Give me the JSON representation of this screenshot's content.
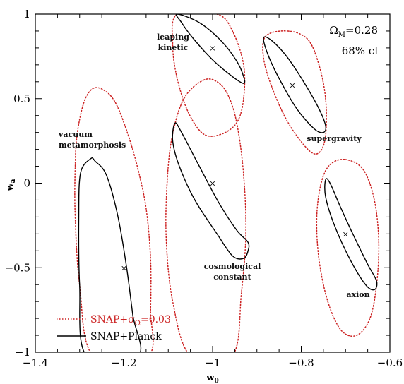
{
  "chart_data": {
    "type": "scatter",
    "xlabel": "w",
    "xlabel_sub": "0",
    "ylabel": "w",
    "ylabel_sub": "a",
    "xlim": [
      -1.4,
      -0.6
    ],
    "ylim": [
      -1,
      1
    ],
    "x_ticks": [
      -1.4,
      -1.2,
      -1.0,
      -0.8,
      -0.6
    ],
    "x_tick_labels": [
      "−1.4",
      "−1.2",
      "−1",
      "−0.8",
      "−0.6"
    ],
    "y_ticks": [
      -1,
      -0.5,
      0,
      0.5,
      1
    ],
    "y_tick_labels": [
      "−1",
      "−0.5",
      "0",
      "0.5",
      "1"
    ],
    "grid": false,
    "annotation_lines": [
      "Ω_M=0.28",
      "68% cl"
    ],
    "annotation_main": "Ω",
    "annotation_sub": "M",
    "annotation_rest": "=0.28",
    "annotation_second": "68% cl",
    "colors": {
      "prior": "#cc2222",
      "planck": "#000000"
    },
    "legend": [
      {
        "label": "SNAP+σ_Ω=0.03",
        "main": "SNAP+σ",
        "sub": "Ω",
        "rest": "=0.03",
        "style": "dotted",
        "color": "#cc2222"
      },
      {
        "label": "SNAP+Planck",
        "main": "SNAP+Planck",
        "sub": "",
        "rest": "",
        "style": "solid",
        "color": "#000000"
      }
    ],
    "models": [
      {
        "name": "vacuum metamorphosis",
        "lines": [
          "vacuum",
          "metamorphosis"
        ],
        "x": -1.2,
        "y": -0.5
      },
      {
        "name": "leaping kinetic",
        "lines": [
          "leaping",
          "kinetic"
        ],
        "x": -1.0,
        "y": 0.8
      },
      {
        "name": "cosmological constant",
        "lines": [
          "cosmological",
          "constant"
        ],
        "x": -1.0,
        "y": 0.0
      },
      {
        "name": "supergravity",
        "lines": [
          "supergravity"
        ],
        "x": -0.82,
        "y": 0.58
      },
      {
        "name": "axion",
        "lines": [
          "axion"
        ],
        "x": -0.7,
        "y": -0.3
      }
    ],
    "series": [
      {
        "name": "SNAP+σ_Ω=0.03",
        "style": "dotted",
        "contours": [
          {
            "model": "vacuum metamorphosis",
            "points": [
              [
                -1.27,
                0.56
              ],
              [
                -1.245,
                0.55
              ],
              [
                -1.22,
                0.48
              ],
              [
                -1.195,
                0.32
              ],
              [
                -1.17,
                0.1
              ],
              [
                -1.15,
                -0.15
              ],
              [
                -1.14,
                -0.45
              ],
              [
                -1.14,
                -0.75
              ],
              [
                -1.145,
                -1.02
              ],
              [
                -1.27,
                -1.02
              ],
              [
                -1.3,
                -0.6
              ],
              [
                -1.31,
                -0.2
              ],
              [
                -1.31,
                0.1
              ],
              [
                -1.305,
                0.3
              ],
              [
                -1.29,
                0.48
              ]
            ]
          },
          {
            "model": "leaping kinetic",
            "points": [
              [
                -1.08,
                1.0
              ],
              [
                -0.99,
                1.0
              ],
              [
                -0.955,
                0.9
              ],
              [
                -0.93,
                0.7
              ],
              [
                -0.93,
                0.5
              ],
              [
                -0.945,
                0.36
              ],
              [
                -0.98,
                0.29
              ],
              [
                -1.02,
                0.29
              ],
              [
                -1.055,
                0.42
              ],
              [
                -1.08,
                0.62
              ],
              [
                -1.09,
                0.82
              ]
            ]
          },
          {
            "model": "cosmological constant",
            "points": [
              [
                -1.02,
                0.61
              ],
              [
                -0.99,
                0.6
              ],
              [
                -0.965,
                0.52
              ],
              [
                -0.945,
                0.35
              ],
              [
                -0.93,
                0.05
              ],
              [
                -0.925,
                -0.3
              ],
              [
                -0.935,
                -0.65
              ],
              [
                -0.955,
                -1.02
              ],
              [
                -1.05,
                -1.02
              ],
              [
                -1.09,
                -0.7
              ],
              [
                -1.105,
                -0.3
              ],
              [
                -1.1,
                0.1
              ],
              [
                -1.085,
                0.35
              ],
              [
                -1.06,
                0.52
              ]
            ]
          },
          {
            "model": "supergravity",
            "points": [
              [
                -0.83,
                0.9
              ],
              [
                -0.785,
                0.85
              ],
              [
                -0.76,
                0.7
              ],
              [
                -0.745,
                0.5
              ],
              [
                -0.745,
                0.28
              ],
              [
                -0.76,
                0.18
              ],
              [
                -0.785,
                0.2
              ],
              [
                -0.83,
                0.36
              ],
              [
                -0.865,
                0.56
              ],
              [
                -0.885,
                0.74
              ],
              [
                -0.88,
                0.87
              ]
            ]
          },
          {
            "model": "axion",
            "points": [
              [
                -0.7,
                0.14
              ],
              [
                -0.66,
                0.08
              ],
              [
                -0.635,
                -0.1
              ],
              [
                -0.625,
                -0.35
              ],
              [
                -0.63,
                -0.6
              ],
              [
                -0.645,
                -0.8
              ],
              [
                -0.675,
                -0.9
              ],
              [
                -0.71,
                -0.87
              ],
              [
                -0.74,
                -0.7
              ],
              [
                -0.76,
                -0.45
              ],
              [
                -0.765,
                -0.2
              ],
              [
                -0.755,
                0.0
              ],
              [
                -0.735,
                0.11
              ]
            ]
          }
        ]
      },
      {
        "name": "SNAP+Planck",
        "style": "solid",
        "contours": [
          {
            "model": "vacuum metamorphosis",
            "points": [
              [
                -1.275,
                0.145
              ],
              [
                -1.265,
                0.13
              ],
              [
                -1.24,
                0.05
              ],
              [
                -1.215,
                -0.18
              ],
              [
                -1.195,
                -0.48
              ],
              [
                -1.18,
                -0.78
              ],
              [
                -1.168,
                -1.02
              ],
              [
                -1.285,
                -1.02
              ],
              [
                -1.3,
                -0.6
              ],
              [
                -1.302,
                -0.2
              ],
              [
                -1.298,
                0.06
              ]
            ]
          },
          {
            "model": "leaping kinetic",
            "points": [
              [
                -1.08,
                1.0
              ],
              [
                -1.03,
                0.95
              ],
              [
                -0.98,
                0.84
              ],
              [
                -0.945,
                0.72
              ],
              [
                -0.93,
                0.63
              ],
              [
                -0.93,
                0.59
              ],
              [
                -0.955,
                0.63
              ],
              [
                -1.0,
                0.73
              ],
              [
                -1.045,
                0.86
              ],
              [
                -1.07,
                0.95
              ]
            ]
          },
          {
            "model": "cosmological constant",
            "points": [
              [
                -1.085,
                0.355
              ],
              [
                -1.07,
                0.3
              ],
              [
                -1.03,
                0.1
              ],
              [
                -0.985,
                -0.12
              ],
              [
                -0.945,
                -0.28
              ],
              [
                -0.92,
                -0.35
              ],
              [
                -0.92,
                -0.4
              ],
              [
                -0.93,
                -0.445
              ],
              [
                -0.955,
                -0.43
              ],
              [
                -0.99,
                -0.3
              ],
              [
                -1.04,
                -0.1
              ],
              [
                -1.075,
                0.1
              ],
              [
                -1.09,
                0.25
              ]
            ]
          },
          {
            "model": "supergravity",
            "points": [
              [
                -0.885,
                0.86
              ],
              [
                -0.865,
                0.84
              ],
              [
                -0.83,
                0.74
              ],
              [
                -0.79,
                0.58
              ],
              [
                -0.76,
                0.44
              ],
              [
                -0.745,
                0.34
              ],
              [
                -0.75,
                0.3
              ],
              [
                -0.77,
                0.32
              ],
              [
                -0.81,
                0.44
              ],
              [
                -0.85,
                0.62
              ],
              [
                -0.875,
                0.76
              ]
            ]
          },
          {
            "model": "axion",
            "points": [
              [
                -0.745,
                0.02
              ],
              [
                -0.735,
                0.0
              ],
              [
                -0.71,
                -0.15
              ],
              [
                -0.68,
                -0.32
              ],
              [
                -0.65,
                -0.48
              ],
              [
                -0.63,
                -0.58
              ],
              [
                -0.635,
                -0.63
              ],
              [
                -0.655,
                -0.6
              ],
              [
                -0.69,
                -0.45
              ],
              [
                -0.725,
                -0.25
              ],
              [
                -0.745,
                -0.08
              ]
            ]
          }
        ]
      }
    ]
  }
}
